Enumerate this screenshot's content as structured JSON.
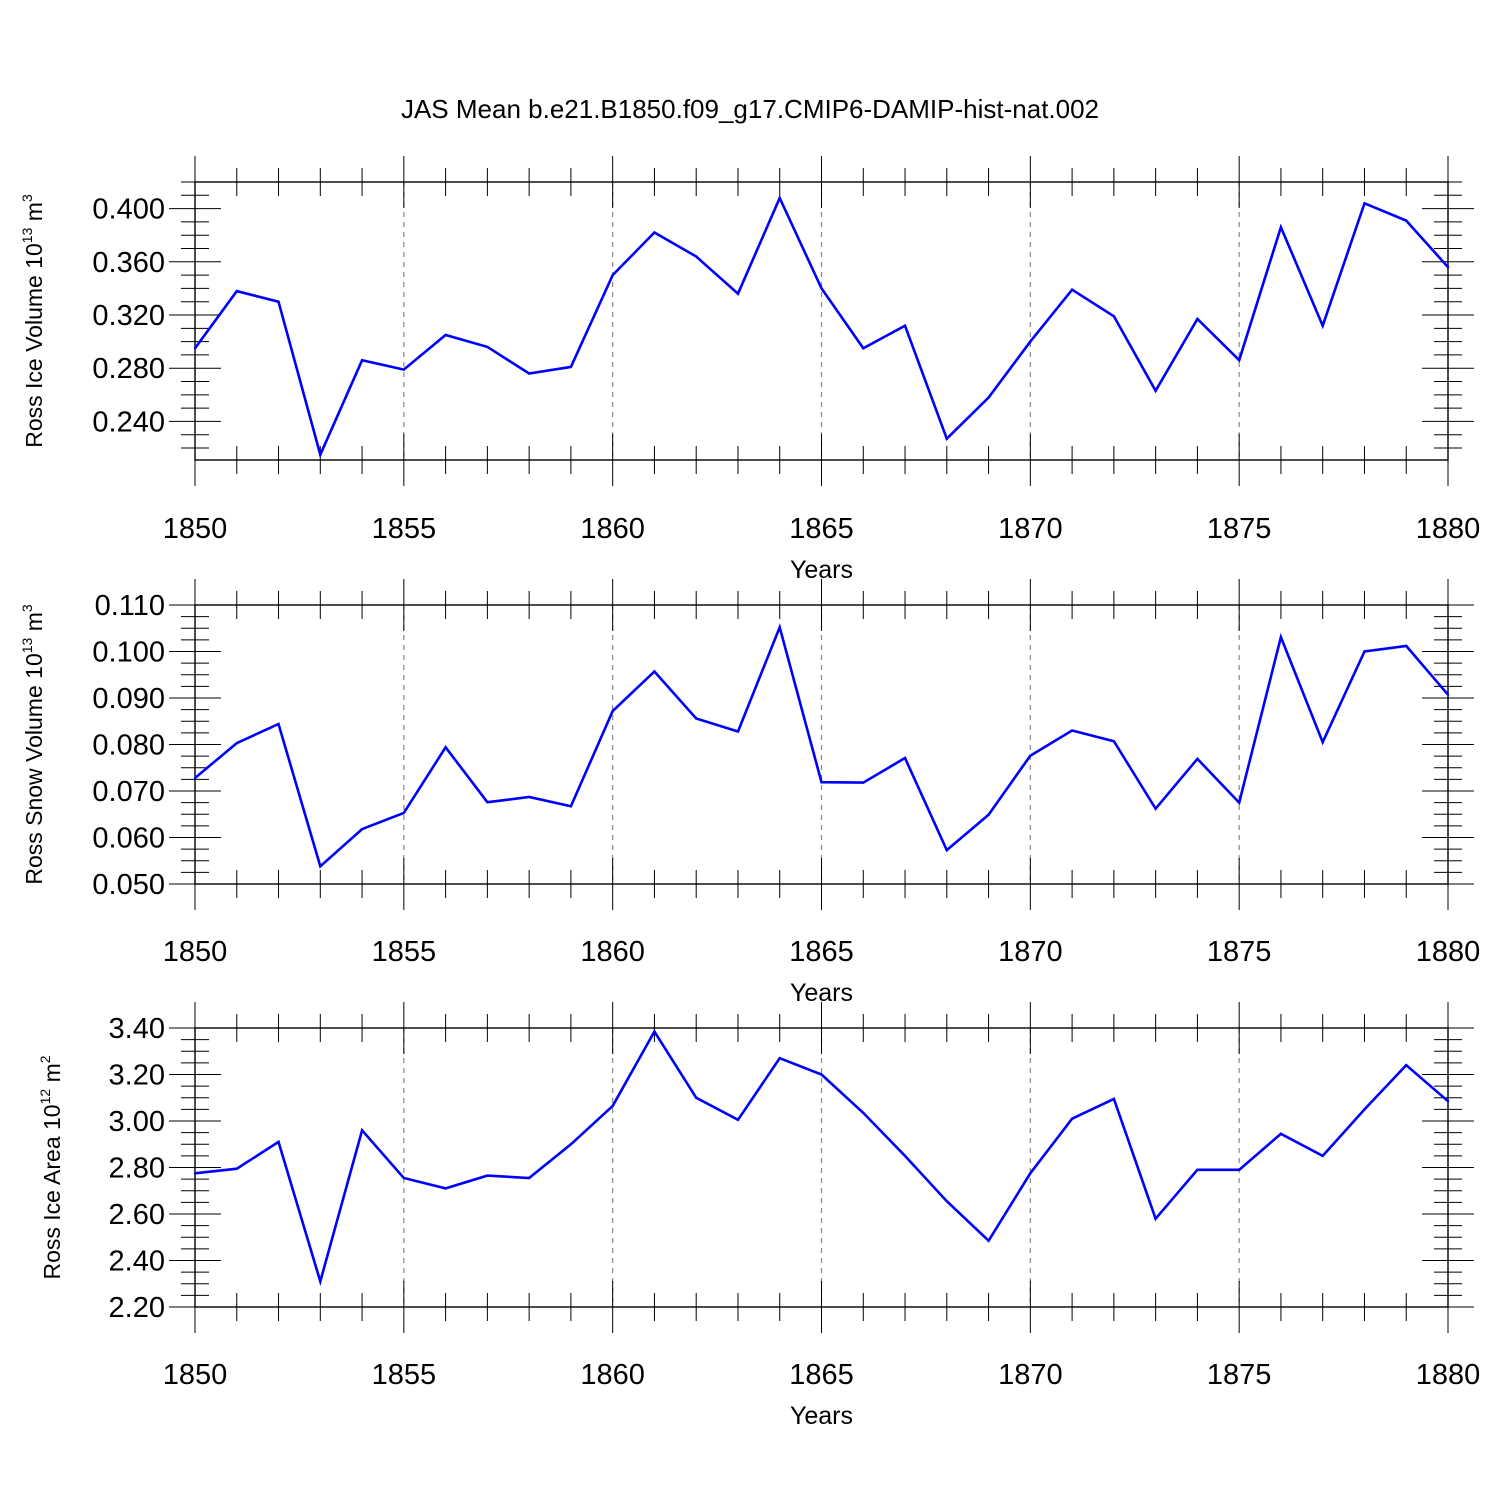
{
  "figure_title": "JAS Mean b.e21.B1850.f09_g17.CMIP6-DAMIP-hist-nat.002",
  "colors": {
    "line": "#0000ff",
    "axis": "#000000",
    "grid": "#888888"
  },
  "chart_data": [
    {
      "type": "line",
      "ylabel": {
        "main": "Ross Ice Volume 10",
        "sup": "13",
        "unit": " m",
        "unit_sup": "3"
      },
      "xlabel": "Years",
      "xlim": [
        1850,
        1880
      ],
      "ylim": [
        0.211,
        0.42
      ],
      "yticks": [
        0.24,
        0.28,
        0.32,
        0.36,
        0.4
      ],
      "ytick_labels": [
        "0.240",
        "0.280",
        "0.320",
        "0.360",
        "0.400"
      ],
      "xticks": [
        1850,
        1855,
        1860,
        1865,
        1870,
        1875,
        1880
      ],
      "xtick_labels": [
        "1850",
        "1855",
        "1860",
        "1865",
        "1870",
        "1875",
        "1880"
      ],
      "series": [
        {
          "name": "Ross Ice Volume",
          "x": [
            1850,
            1851,
            1852,
            1853,
            1854,
            1855,
            1856,
            1857,
            1858,
            1859,
            1860,
            1861,
            1862,
            1863,
            1864,
            1865,
            1866,
            1867,
            1868,
            1869,
            1870,
            1871,
            1872,
            1873,
            1874,
            1875,
            1876,
            1877,
            1878,
            1879,
            1880
          ],
          "values": [
            0.295,
            0.338,
            0.33,
            0.215,
            0.286,
            0.279,
            0.305,
            0.296,
            0.276,
            0.281,
            0.35,
            0.382,
            0.364,
            0.336,
            0.408,
            0.34,
            0.295,
            0.312,
            0.227,
            0.258,
            0.3,
            0.339,
            0.319,
            0.263,
            0.317,
            0.286,
            0.386,
            0.312,
            0.404,
            0.391,
            0.356
          ]
        }
      ]
    },
    {
      "type": "line",
      "ylabel": {
        "main": "Ross Snow Volume 10",
        "sup": "13",
        "unit": " m",
        "unit_sup": "3"
      },
      "xlabel": "Years",
      "xlim": [
        1850,
        1880
      ],
      "ylim": [
        0.05,
        0.11
      ],
      "yticks": [
        0.05,
        0.06,
        0.07,
        0.08,
        0.09,
        0.1,
        0.11
      ],
      "ytick_labels": [
        "0.050",
        "0.060",
        "0.070",
        "0.080",
        "0.090",
        "0.100",
        "0.110"
      ],
      "xticks": [
        1850,
        1855,
        1860,
        1865,
        1870,
        1875,
        1880
      ],
      "xtick_labels": [
        "1850",
        "1855",
        "1860",
        "1865",
        "1870",
        "1875",
        "1880"
      ],
      "series": [
        {
          "name": "Ross Snow Volume",
          "x": [
            1850,
            1851,
            1852,
            1853,
            1854,
            1855,
            1856,
            1857,
            1858,
            1859,
            1860,
            1861,
            1862,
            1863,
            1864,
            1865,
            1866,
            1867,
            1868,
            1869,
            1870,
            1871,
            1872,
            1873,
            1874,
            1875,
            1876,
            1877,
            1878,
            1879,
            1880
          ],
          "values": [
            0.0728,
            0.0803,
            0.0844,
            0.0538,
            0.0618,
            0.0653,
            0.0794,
            0.0676,
            0.0687,
            0.0667,
            0.0872,
            0.0957,
            0.0856,
            0.0828,
            0.1052,
            0.0719,
            0.0718,
            0.0771,
            0.0573,
            0.0649,
            0.0776,
            0.083,
            0.0807,
            0.0662,
            0.0769,
            0.0675,
            0.1031,
            0.0805,
            0.1,
            0.1012,
            0.0907
          ]
        }
      ]
    },
    {
      "type": "line",
      "ylabel": {
        "main": "Ross Ice Area 10",
        "sup": "12",
        "unit": " m",
        "unit_sup": "2"
      },
      "xlabel": "Years",
      "xlim": [
        1850,
        1880
      ],
      "ylim": [
        2.2,
        3.4
      ],
      "yticks": [
        2.2,
        2.4,
        2.6,
        2.8,
        3.0,
        3.2,
        3.4
      ],
      "ytick_labels": [
        "2.20",
        "2.40",
        "2.60",
        "2.80",
        "3.00",
        "3.20",
        "3.40"
      ],
      "xticks": [
        1850,
        1855,
        1860,
        1865,
        1870,
        1875,
        1880
      ],
      "xtick_labels": [
        "1850",
        "1855",
        "1860",
        "1865",
        "1870",
        "1875",
        "1880"
      ],
      "series": [
        {
          "name": "Ross Ice Area",
          "x": [
            1850,
            1851,
            1852,
            1853,
            1854,
            1855,
            1856,
            1857,
            1858,
            1859,
            1860,
            1861,
            1862,
            1863,
            1864,
            1865,
            1866,
            1867,
            1868,
            1869,
            1870,
            1871,
            1872,
            1873,
            1874,
            1875,
            1876,
            1877,
            1878,
            1879,
            1880
          ],
          "values": [
            2.775,
            2.795,
            2.91,
            2.31,
            2.96,
            2.755,
            2.71,
            2.765,
            2.755,
            2.9,
            3.065,
            3.385,
            3.1,
            3.005,
            3.27,
            3.2,
            3.035,
            2.85,
            2.655,
            2.485,
            2.775,
            3.01,
            3.095,
            2.58,
            2.79,
            2.79,
            2.945,
            2.85,
            3.05,
            3.24,
            3.085
          ]
        }
      ]
    }
  ]
}
